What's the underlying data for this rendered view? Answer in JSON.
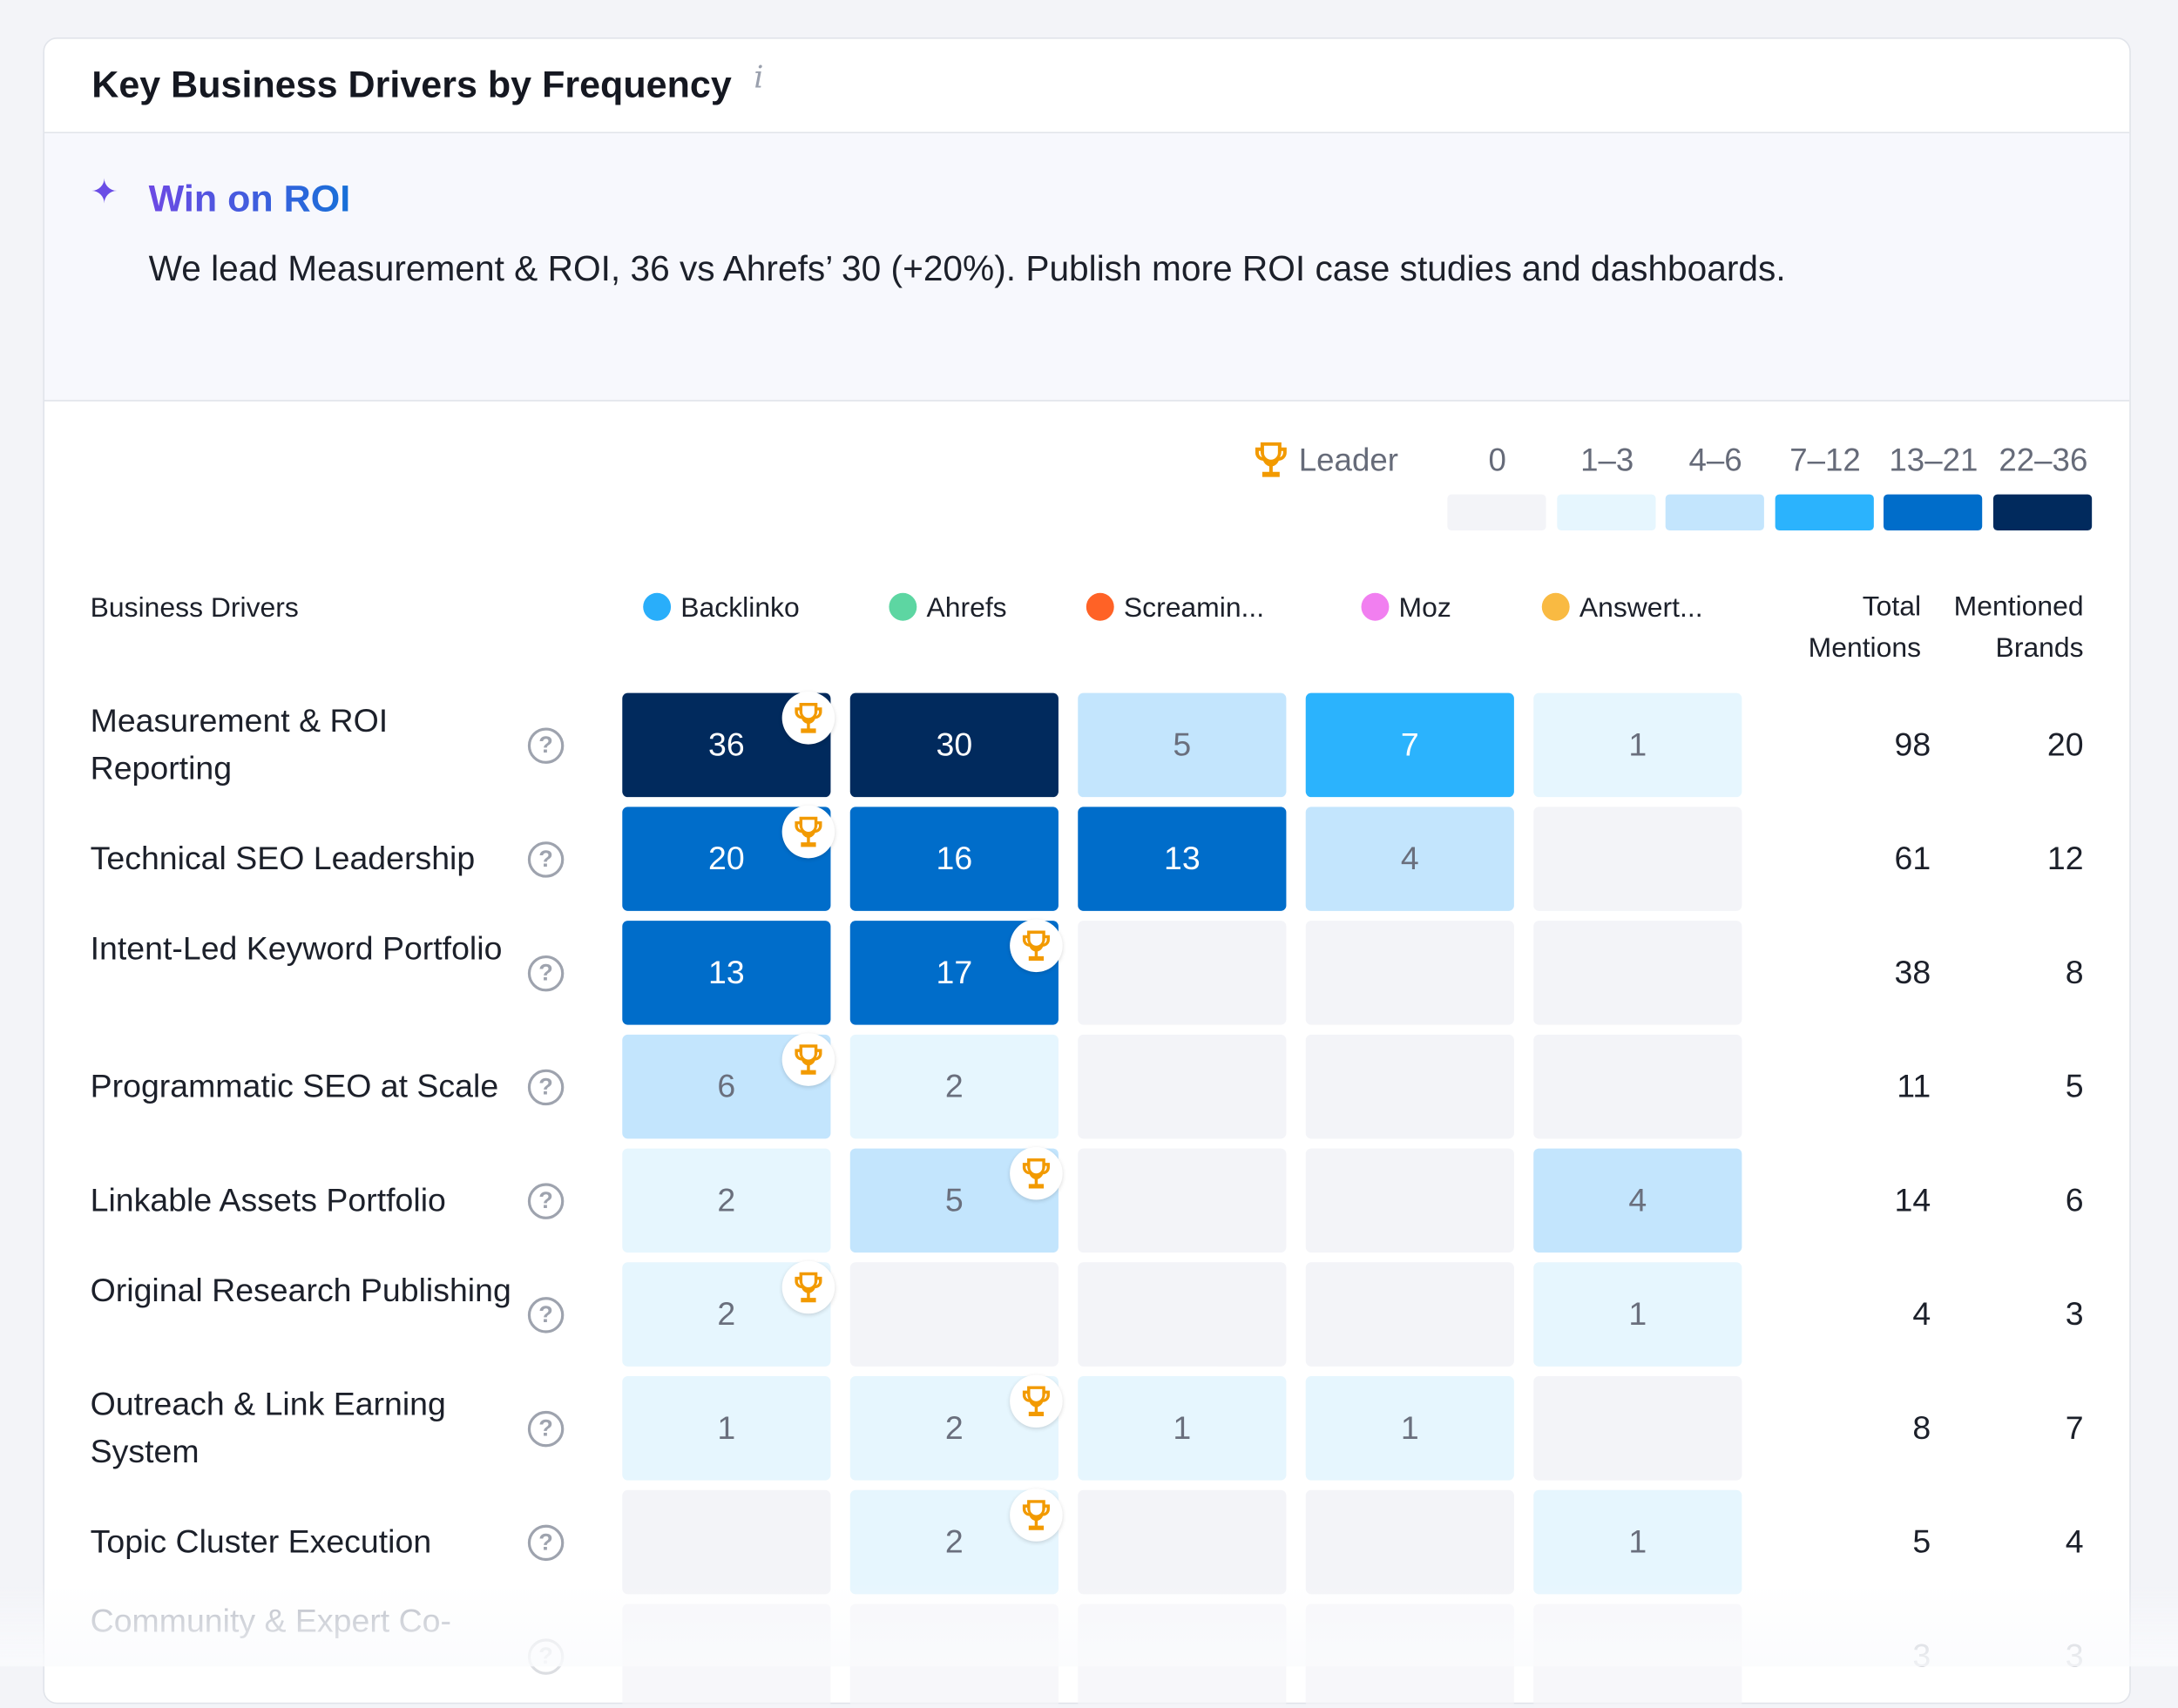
{
  "header": {
    "title": "Key Business Drivers by Frequency",
    "info_icon": "info-icon"
  },
  "insight": {
    "icon": "sparkle-icon",
    "title": "Win on ROI",
    "text": "We lead Measurement & ROI, 36 vs Ahrefs’ 30 (+20%). Publish more ROI case studies and dashboards."
  },
  "legend": {
    "leader_label": "Leader",
    "bins": [
      {
        "label": "0",
        "color": "#f3f4f8"
      },
      {
        "label": "1–3",
        "color": "#e6f6fe"
      },
      {
        "label": "4–6",
        "color": "#c3e5fd"
      },
      {
        "label": "7–12",
        "color": "#2bb3fd"
      },
      {
        "label": "13–21",
        "color": "#006dca"
      },
      {
        "label": "22–36",
        "color": "#012a5d"
      }
    ]
  },
  "columns": {
    "drivers": "Business Drivers",
    "total": "Total Mentions",
    "brands_count": "Mentioned Brands",
    "brands": [
      {
        "name": "Backlinko",
        "color": "#29aefa"
      },
      {
        "name": "Ahrefs",
        "color": "#5dd6a2"
      },
      {
        "name": "Screamin...",
        "color": "#ff6226"
      },
      {
        "name": "Moz",
        "color": "#f17ff0"
      },
      {
        "name": "Answert...",
        "color": "#f9ba42"
      }
    ]
  },
  "rows": [
    {
      "label": "Measurement & ROI Reporting",
      "values": [
        36,
        30,
        5,
        7,
        1
      ],
      "leader": 0,
      "total": "98",
      "brands": "20"
    },
    {
      "label": "Technical SEO Leadership",
      "values": [
        20,
        16,
        13,
        4,
        0
      ],
      "leader": 0,
      "total": "61",
      "brands": "12"
    },
    {
      "label": "Intent-Led Keyword Portfolio",
      "values": [
        13,
        17,
        0,
        0,
        0
      ],
      "leader": 1,
      "total": "38",
      "brands": "8"
    },
    {
      "label": "Programmatic SEO at Scale",
      "values": [
        6,
        2,
        0,
        0,
        0
      ],
      "leader": 0,
      "total": "11",
      "brands": "5"
    },
    {
      "label": "Linkable Assets Portfolio",
      "values": [
        2,
        5,
        0,
        0,
        4
      ],
      "leader": 1,
      "total": "14",
      "brands": "6"
    },
    {
      "label": "Original Research Publishing",
      "values": [
        2,
        0,
        0,
        0,
        1
      ],
      "leader": 0,
      "total": "4",
      "brands": "3"
    },
    {
      "label": "Outreach & Link Earning System",
      "values": [
        1,
        2,
        1,
        1,
        0
      ],
      "leader": 1,
      "total": "8",
      "brands": "7"
    },
    {
      "label": "Topic Cluster Execution",
      "values": [
        0,
        2,
        0,
        0,
        1
      ],
      "leader": 1,
      "total": "5",
      "brands": "4"
    },
    {
      "label": "Community & Expert Co-",
      "values": [
        0,
        0,
        0,
        0,
        0
      ],
      "leader": null,
      "total": "3",
      "brands": "3"
    }
  ]
}
